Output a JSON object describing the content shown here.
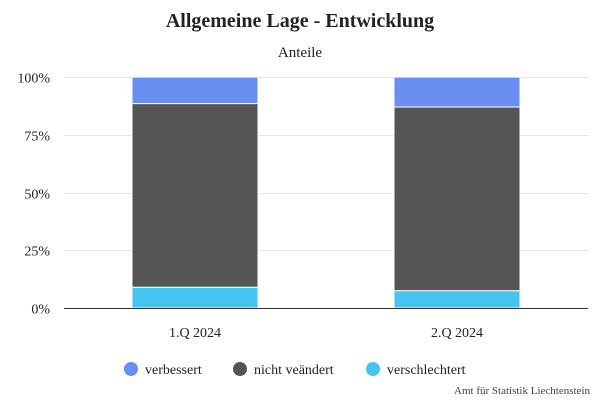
{
  "chart_data": {
    "type": "bar",
    "stacked": true,
    "percent": true,
    "title": "Allgemeine Lage - Entwicklung",
    "subtitle": "Anteile",
    "categories": [
      "1.Q 2024",
      "2.Q 2024"
    ],
    "series": [
      {
        "name": "verschlechtert",
        "values": [
          9,
          7.5
        ],
        "color": "#44c4ee"
      },
      {
        "name": "nicht veändert",
        "values": [
          79.5,
          79.5
        ],
        "color": "#555555"
      },
      {
        "name": "verbessert",
        "values": [
          11.5,
          13
        ],
        "color": "#6a8ff3"
      }
    ],
    "legend_order": [
      "verbessert",
      "nicht veändert",
      "verschlechtert"
    ],
    "y_ticks": [
      "0%",
      "25%",
      "50%",
      "75%",
      "100%"
    ],
    "ylim": [
      0,
      100
    ],
    "grid": true,
    "legend_placement": "bottom"
  },
  "credit": "Amt für Statistik Liechtenstein"
}
